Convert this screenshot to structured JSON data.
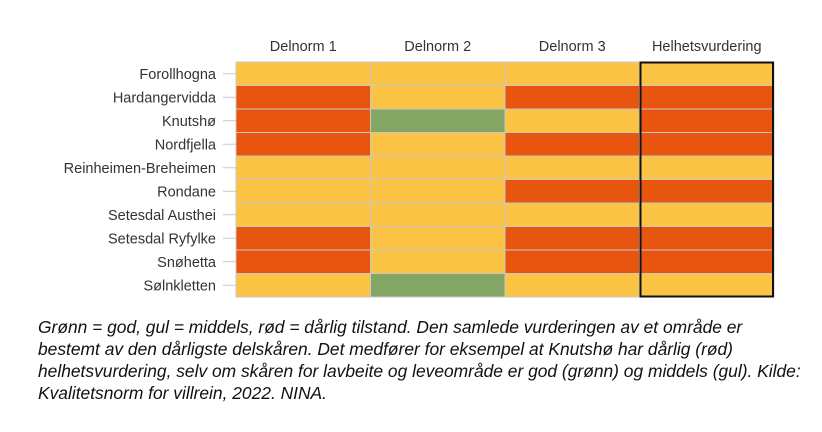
{
  "chart_data": {
    "type": "heatmap",
    "columns": [
      "Delnorm 1",
      "Delnorm 2",
      "Delnorm 3",
      "Helhetsvurdering"
    ],
    "rows": [
      "Forollhogna",
      "Hardangervidda",
      "Knutshø",
      "Nordfjella",
      "Reinheimen-Breheimen",
      "Rondane",
      "Setesdal Austhei",
      "Setesdal Ryfylke",
      "Snøhetta",
      "Sølnkletten"
    ],
    "values": [
      [
        "gul",
        "gul",
        "gul",
        "gul"
      ],
      [
        "rød",
        "gul",
        "rød",
        "rød"
      ],
      [
        "rød",
        "grønn",
        "gul",
        "rød"
      ],
      [
        "rød",
        "gul",
        "rød",
        "rød"
      ],
      [
        "gul",
        "gul",
        "gul",
        "gul"
      ],
      [
        "gul",
        "gul",
        "rød",
        "rød"
      ],
      [
        "gul",
        "gul",
        "gul",
        "gul"
      ],
      [
        "rød",
        "gul",
        "rød",
        "rød"
      ],
      [
        "rød",
        "gul",
        "rød",
        "rød"
      ],
      [
        "gul",
        "grønn",
        "gul",
        "gul"
      ]
    ],
    "colors": {
      "grønn": "#84a665",
      "gul": "#fcc445",
      "rød": "#e7550f"
    },
    "grid_color": "#c8c8c8",
    "highlight_column": "Helhetsvurdering",
    "highlight_color": "#111111"
  },
  "caption": "Grønn = god, gul = middels, rød = dårlig tilstand. Den samlede vurderingen av et område er bestemt av den dårligste delskåren. Det medfører for eksempel at Knutshø har dårlig (rød) helhetsvurdering, selv om skåren for lavbeite og leveområde er god (grønn) og middels (gul). Kilde: Kvalitetsnorm for villrein, 2022. NINA."
}
